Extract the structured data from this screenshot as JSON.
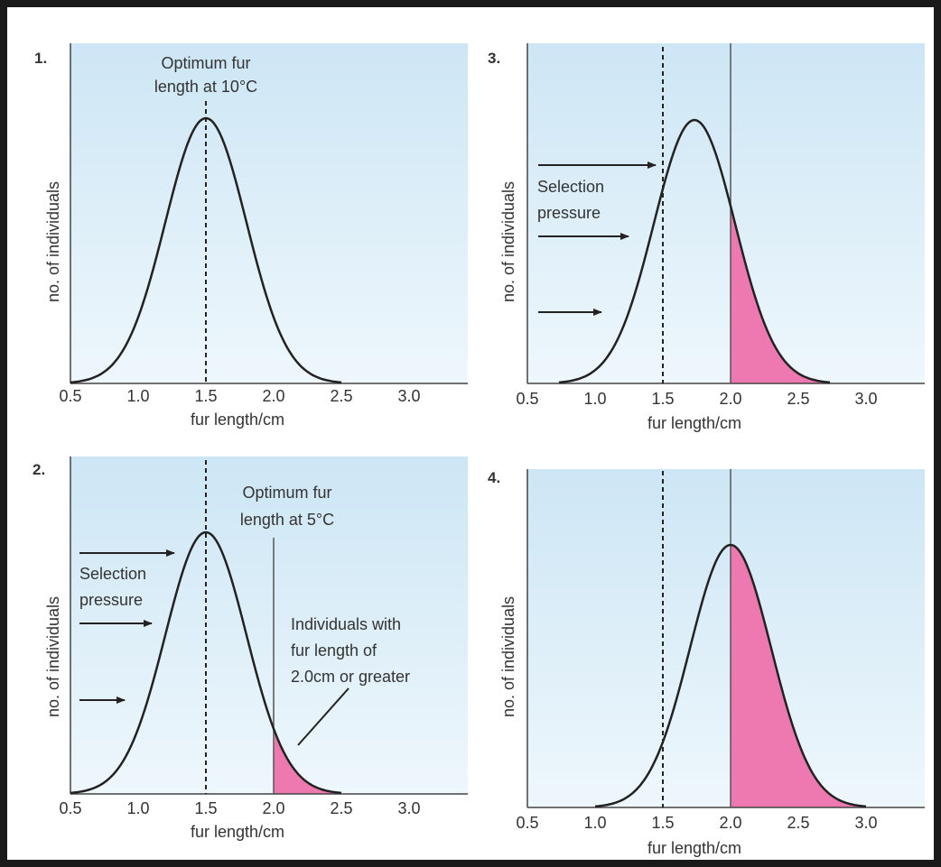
{
  "figure": {
    "panels": [
      {
        "number": "1.",
        "ylabel": "no. of individuals",
        "xlabel": "fur length/cm",
        "ticks": [
          "0.5",
          "1.0",
          "1.5",
          "2.0",
          "2.5",
          "3.0"
        ],
        "annotation_lines": [
          "Optimum fur",
          "length at 10°C"
        ]
      },
      {
        "number": "3.",
        "ylabel": "no. of individuals",
        "xlabel": "fur length/cm",
        "ticks": [
          "0.5",
          "1.0",
          "1.5",
          "2.0",
          "2.5",
          "3.0"
        ],
        "selection_label_lines": [
          "Selection",
          "pressure"
        ]
      },
      {
        "number": "2.",
        "ylabel": "no. of individuals",
        "xlabel": "fur length/cm",
        "ticks": [
          "0.5",
          "1.0",
          "1.5",
          "2.0",
          "2.5",
          "3.0"
        ],
        "annotation_lines": [
          "Optimum fur",
          "length at 5°C"
        ],
        "selection_label_lines": [
          "Selection",
          "pressure"
        ],
        "callout_lines": [
          "Individuals with",
          "fur length of",
          "2.0cm or greater"
        ]
      },
      {
        "number": "4.",
        "ylabel": "no. of individuals",
        "xlabel": "fur length/cm",
        "ticks": [
          "0.5",
          "1.0",
          "1.5",
          "2.0",
          "2.5",
          "3.0"
        ]
      }
    ],
    "colors": {
      "plot_bg_top": "#cde6f5",
      "plot_bg_bottom": "#eef7fc",
      "curve": "#222222",
      "shaded": "#ee78b0"
    }
  }
}
